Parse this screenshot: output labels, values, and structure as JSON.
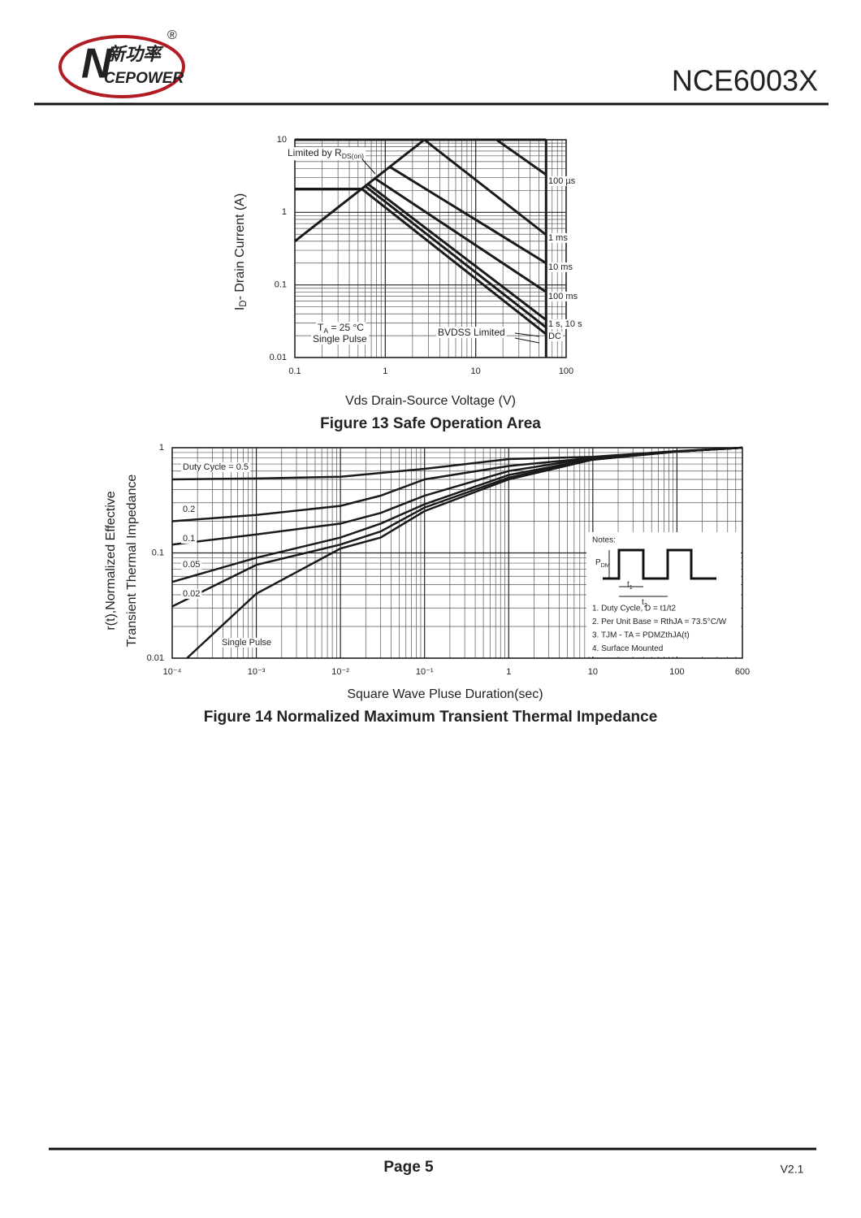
{
  "header": {
    "logo": {
      "initial": "N",
      "name": "新功率",
      "brand": "CEPOWER",
      "mark": "®"
    },
    "title": "NCE6003X"
  },
  "chart_data": [
    {
      "type": "line",
      "xscale": "log",
      "yscale": "log",
      "grid": true,
      "color": "#1a1a1a",
      "y_label": [
        "I",
        "D",
        "- Drain Current (A)"
      ],
      "x_label": "Vds Drain-Source Voltage (V)",
      "caption": "Figure 13 Safe Operation Area",
      "xlim": [
        0.1,
        100
      ],
      "ylim": [
        0.01,
        10
      ],
      "xticks": [
        0.1,
        1,
        10,
        100
      ],
      "yticks": [
        0.01,
        0.1,
        1,
        10
      ],
      "series": [
        {
          "x": [
            0.1,
            60
          ],
          "values": [
            10,
            10
          ]
        },
        {
          "x": [
            0.1,
            2.7
          ],
          "values": [
            0.4,
            10
          ]
        },
        {
          "name": "100 µs",
          "x": [
            17,
            60
          ],
          "values": [
            10,
            3.3
          ]
        },
        {
          "name": "1 ms",
          "x": [
            2.7,
            60
          ],
          "values": [
            10,
            0.49
          ]
        },
        {
          "name": "10 ms",
          "x": [
            1.1,
            60
          ],
          "values": [
            4.3,
            0.2
          ]
        },
        {
          "name": "100 ms",
          "x": [
            0.75,
            60
          ],
          "values": [
            3.0,
            0.08
          ]
        },
        {
          "name": "1 s, 10 s",
          "x": [
            0.63,
            60
          ],
          "values": [
            2.5,
            0.033
          ]
        },
        {
          "x": [
            0.6,
            60
          ],
          "values": [
            2.3,
            0.026
          ]
        },
        {
          "name": "DC",
          "x": [
            0.1,
            0.55,
            60
          ],
          "values": [
            2.1,
            2.1,
            0.021
          ]
        },
        {
          "x": [
            60,
            60
          ],
          "values": [
            0.01,
            10
          ]
        }
      ],
      "annotations": [
        [
          "Limited by R",
          "DS(on)"
        ],
        [
          "T",
          "A",
          " = 25 °C"
        ],
        [
          "Single Pulse"
        ],
        [
          "BVDSS Limited"
        ]
      ]
    },
    {
      "type": "line",
      "xscale": "log",
      "yscale": "log",
      "grid": true,
      "color": "#1a1a1a",
      "y_label": [
        "r(t),Normalized Effective",
        "Transient Thermal Impedance"
      ],
      "x_label": "Square Wave Pluse Duration(sec)",
      "caption": "Figure 14 Normalized Maximum Transient Thermal Impedance",
      "xlim": [
        0.0001,
        600
      ],
      "ylim": [
        0.01,
        1
      ],
      "xticks": [
        {
          "value": 0.0001,
          "label": "10⁻⁴"
        },
        {
          "value": 0.001,
          "label": "10⁻³"
        },
        {
          "value": 0.01,
          "label": "10⁻²"
        },
        {
          "value": 0.1,
          "label": "10⁻¹"
        },
        1,
        10,
        100,
        600
      ],
      "yticks": [
        0.01,
        0.1,
        1
      ],
      "series": [
        {
          "name": "Duty Cycle = 0.5",
          "x": [
            0.0001,
            0.001,
            0.01,
            0.1,
            1,
            10,
            100,
            600
          ],
          "values": [
            0.5,
            0.51,
            0.53,
            0.63,
            0.78,
            0.82,
            0.93,
            1
          ]
        },
        {
          "name": "0.2",
          "x": [
            0.0001,
            0.001,
            0.01,
            0.03,
            0.1,
            1,
            10,
            100,
            600
          ],
          "values": [
            0.2,
            0.23,
            0.28,
            0.35,
            0.5,
            0.67,
            0.8,
            0.92,
            1
          ]
        },
        {
          "name": "0.1",
          "x": [
            0.0001,
            0.001,
            0.01,
            0.03,
            0.1,
            1,
            10,
            100,
            600
          ],
          "values": [
            0.12,
            0.15,
            0.19,
            0.24,
            0.35,
            0.6,
            0.8,
            0.92,
            1
          ]
        },
        {
          "name": "0.05",
          "x": [
            0.0001,
            0.001,
            0.01,
            0.03,
            0.1,
            1,
            10,
            100,
            600
          ],
          "values": [
            0.053,
            0.09,
            0.14,
            0.19,
            0.29,
            0.55,
            0.78,
            0.92,
            1
          ]
        },
        {
          "name": "0.02",
          "x": [
            0.0001,
            0.001,
            0.01,
            0.03,
            0.1,
            1,
            10,
            100,
            600
          ],
          "values": [
            0.031,
            0.077,
            0.12,
            0.16,
            0.27,
            0.52,
            0.77,
            0.92,
            1
          ]
        },
        {
          "name": "Single Pulse",
          "x": [
            0.00015,
            0.001,
            0.01,
            0.03,
            0.1,
            1,
            10,
            100,
            600
          ],
          "values": [
            0.01,
            0.041,
            0.11,
            0.14,
            0.25,
            0.5,
            0.77,
            0.92,
            1
          ]
        }
      ],
      "notes": {
        "title": "Notes:",
        "pdm": [
          "P",
          "DM"
        ],
        "t1": [
          "t",
          "1"
        ],
        "t2": [
          "t",
          "2"
        ],
        "items": [
          "1. Duty Cycle, D = t1/t2",
          "2. Per Unit Base = RthJA = 73.5°C/W",
          "3. TJM - TA = PDMZthJA(t)",
          "4. Surface Mounted"
        ]
      }
    }
  ],
  "footer": {
    "page": "Page 5",
    "version": "V2.1"
  }
}
